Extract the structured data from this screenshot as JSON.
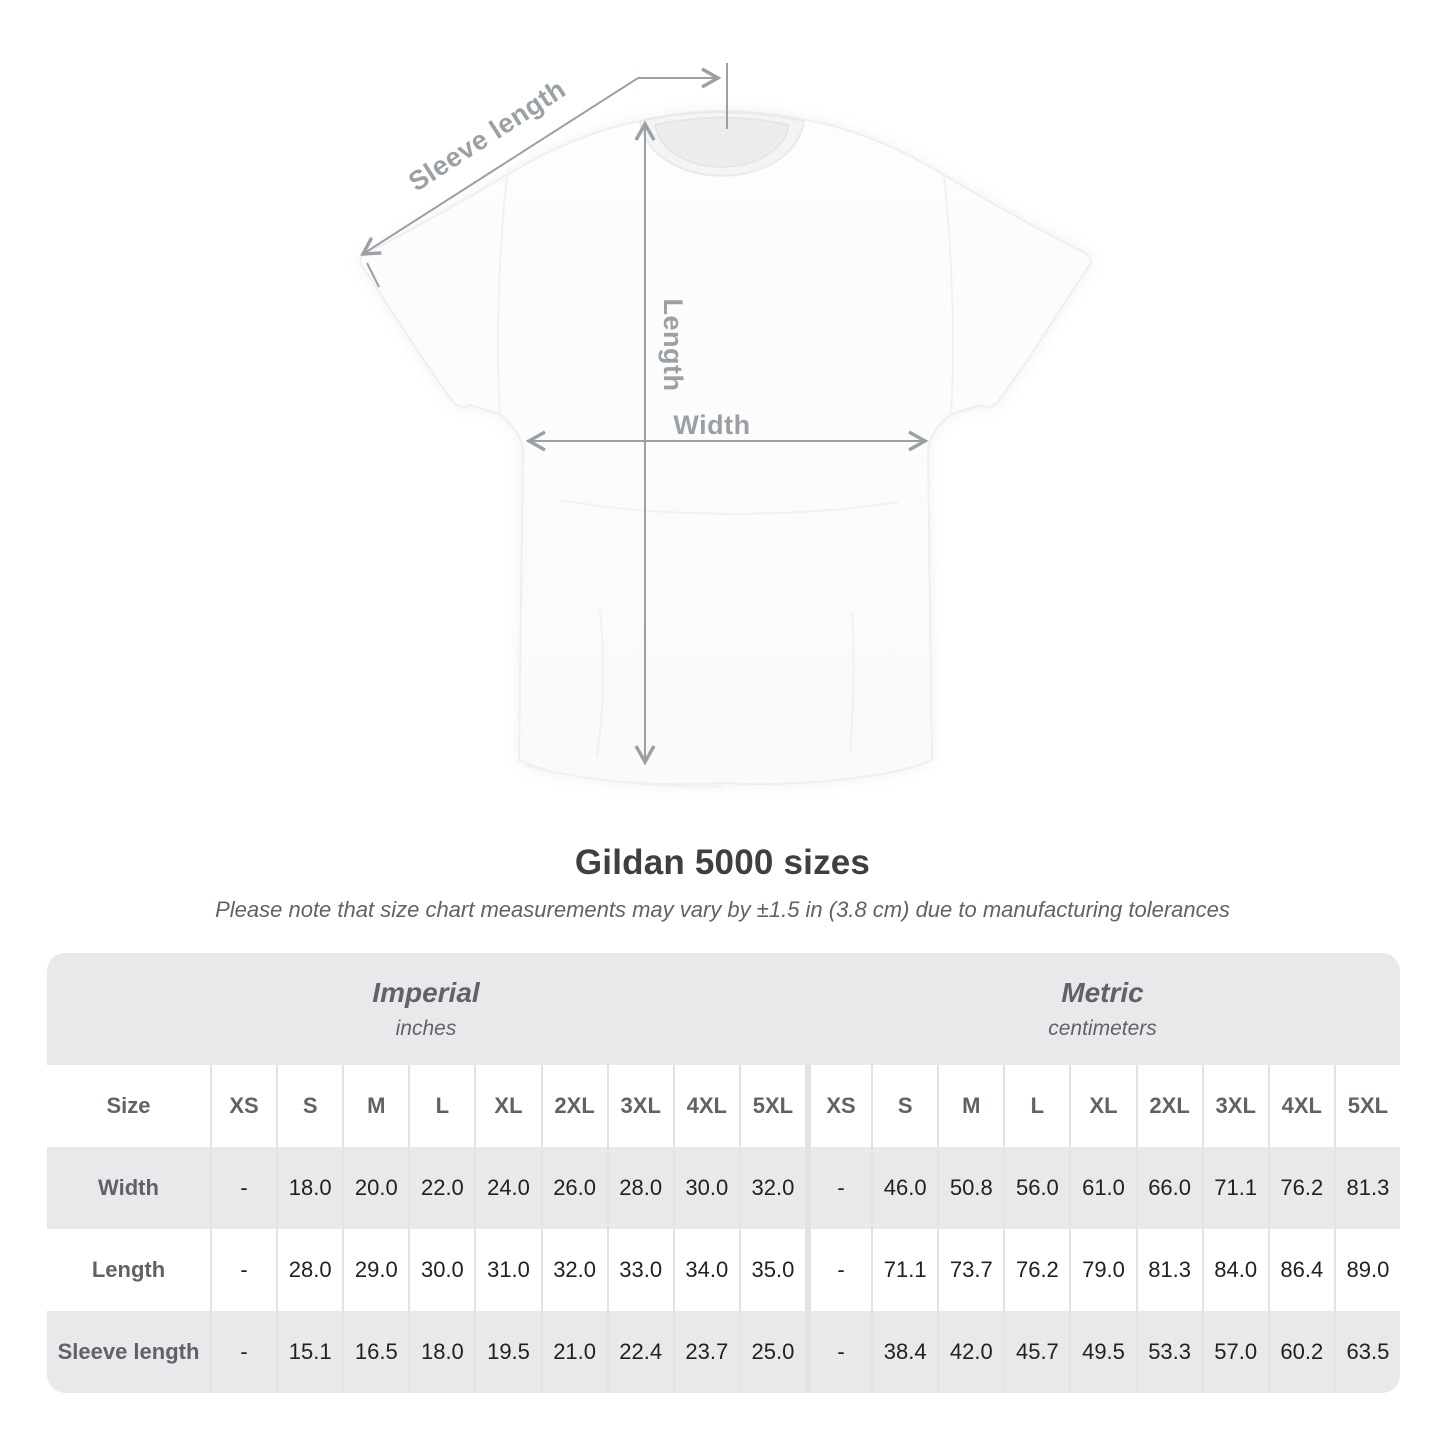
{
  "diagram": {
    "labels": {
      "sleeve_length": "Sleeve length",
      "length": "Length",
      "width": "Width"
    }
  },
  "title": "Gildan 5000 sizes",
  "subtitle": "Please note that size chart measurements may vary by ±1.5 in (3.8 cm) due to manufacturing tolerances",
  "table": {
    "size_col_header": "Size",
    "unit_headers": [
      {
        "title": "Imperial",
        "subtitle": "inches"
      },
      {
        "title": "Metric",
        "subtitle": "centimeters"
      }
    ],
    "sizes": [
      "XS",
      "S",
      "M",
      "L",
      "XL",
      "2XL",
      "3XL",
      "4XL",
      "5XL"
    ],
    "rows": [
      {
        "label": "Width",
        "imperial": [
          "-",
          "18.0",
          "20.0",
          "22.0",
          "24.0",
          "26.0",
          "28.0",
          "30.0",
          "32.0"
        ],
        "metric": [
          "-",
          "46.0",
          "50.8",
          "56.0",
          "61.0",
          "66.0",
          "71.1",
          "76.2",
          "81.3"
        ]
      },
      {
        "label": "Length",
        "imperial": [
          "-",
          "28.0",
          "29.0",
          "30.0",
          "31.0",
          "32.0",
          "33.0",
          "34.0",
          "35.0"
        ],
        "metric": [
          "-",
          "71.1",
          "73.7",
          "76.2",
          "79.0",
          "81.3",
          "84.0",
          "86.4",
          "89.0"
        ]
      },
      {
        "label": "Sleeve length",
        "imperial": [
          "-",
          "15.1",
          "16.5",
          "18.0",
          "19.5",
          "21.0",
          "22.4",
          "23.7",
          "25.0"
        ],
        "metric": [
          "-",
          "38.4",
          "42.0",
          "45.7",
          "49.5",
          "53.3",
          "57.0",
          "60.2",
          "63.5"
        ]
      }
    ]
  },
  "colors": {
    "dimension_gray": "#9aa0a4",
    "header_text": "#5f6368",
    "value_text": "#212124",
    "band_bg": "#e9e9eb",
    "title_text": "#3c4043"
  }
}
